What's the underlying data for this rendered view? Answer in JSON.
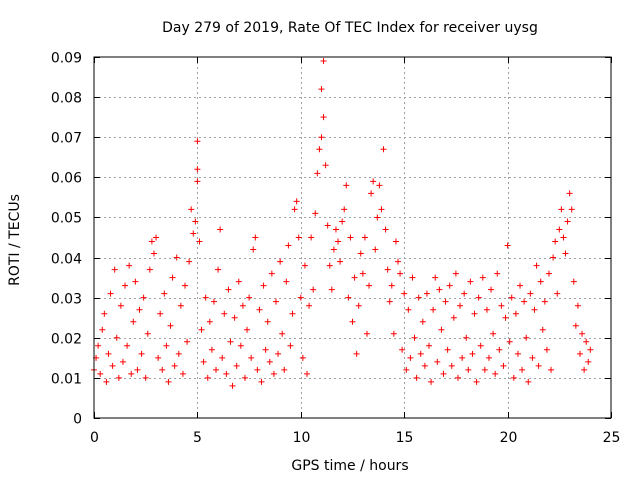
{
  "chart_data": {
    "type": "scatter",
    "title": "Day 279 of 2019, Rate Of TEC Index for receiver uysg",
    "xlabel": "GPS time / hours",
    "ylabel": "ROTI / TECUs",
    "xlim": [
      0,
      25
    ],
    "ylim": [
      0,
      0.09
    ],
    "xticks": [
      0,
      5,
      10,
      15,
      20,
      25
    ],
    "xtick_labels": [
      "0",
      "5",
      "10",
      "15",
      "20",
      "25"
    ],
    "yticks": [
      0,
      0.01,
      0.02,
      0.03,
      0.04,
      0.05,
      0.06,
      0.07,
      0.08,
      0.09
    ],
    "ytick_labels": [
      "0",
      "0.01",
      "0.02",
      "0.03",
      "0.04",
      "0.05",
      "0.06",
      "0.07",
      "0.08",
      "0.09"
    ],
    "grid": true,
    "marker": "+",
    "color": "#ff0000",
    "series": [
      {
        "name": "ROTI",
        "points": [
          [
            0.0,
            0.012
          ],
          [
            0.1,
            0.015
          ],
          [
            0.2,
            0.018
          ],
          [
            0.3,
            0.011
          ],
          [
            0.4,
            0.022
          ],
          [
            0.5,
            0.026
          ],
          [
            0.6,
            0.009
          ],
          [
            0.7,
            0.016
          ],
          [
            0.8,
            0.031
          ],
          [
            0.9,
            0.013
          ],
          [
            1.0,
            0.037
          ],
          [
            1.1,
            0.02
          ],
          [
            1.2,
            0.01
          ],
          [
            1.3,
            0.028
          ],
          [
            1.4,
            0.014
          ],
          [
            1.5,
            0.033
          ],
          [
            1.6,
            0.018
          ],
          [
            1.7,
            0.038
          ],
          [
            1.8,
            0.011
          ],
          [
            1.9,
            0.024
          ],
          [
            2.0,
            0.034
          ],
          [
            2.1,
            0.012
          ],
          [
            2.2,
            0.027
          ],
          [
            2.3,
            0.016
          ],
          [
            2.4,
            0.03
          ],
          [
            2.5,
            0.01
          ],
          [
            2.6,
            0.021
          ],
          [
            2.7,
            0.037
          ],
          [
            2.8,
            0.044
          ],
          [
            2.9,
            0.041
          ],
          [
            3.0,
            0.045
          ],
          [
            3.1,
            0.015
          ],
          [
            3.2,
            0.026
          ],
          [
            3.3,
            0.012
          ],
          [
            3.4,
            0.031
          ],
          [
            3.5,
            0.018
          ],
          [
            3.6,
            0.009
          ],
          [
            3.7,
            0.023
          ],
          [
            3.8,
            0.035
          ],
          [
            3.9,
            0.013
          ],
          [
            4.0,
            0.04
          ],
          [
            4.1,
            0.016
          ],
          [
            4.2,
            0.028
          ],
          [
            4.3,
            0.011
          ],
          [
            4.4,
            0.033
          ],
          [
            4.5,
            0.019
          ],
          [
            4.6,
            0.039
          ],
          [
            4.7,
            0.052
          ],
          [
            4.8,
            0.046
          ],
          [
            4.9,
            0.049
          ],
          [
            5.0,
            0.069
          ],
          [
            5.0,
            0.062
          ],
          [
            5.0,
            0.059
          ],
          [
            5.1,
            0.044
          ],
          [
            5.2,
            0.022
          ],
          [
            5.3,
            0.014
          ],
          [
            5.4,
            0.03
          ],
          [
            5.5,
            0.01
          ],
          [
            5.6,
            0.024
          ],
          [
            5.7,
            0.017
          ],
          [
            5.8,
            0.029
          ],
          [
            5.9,
            0.012
          ],
          [
            6.0,
            0.037
          ],
          [
            6.1,
            0.047
          ],
          [
            6.2,
            0.015
          ],
          [
            6.3,
            0.026
          ],
          [
            6.4,
            0.011
          ],
          [
            6.5,
            0.032
          ],
          [
            6.6,
            0.019
          ],
          [
            6.7,
            0.008
          ],
          [
            6.8,
            0.025
          ],
          [
            6.9,
            0.013
          ],
          [
            7.0,
            0.034
          ],
          [
            7.1,
            0.018
          ],
          [
            7.2,
            0.028
          ],
          [
            7.3,
            0.01
          ],
          [
            7.4,
            0.022
          ],
          [
            7.5,
            0.03
          ],
          [
            7.6,
            0.015
          ],
          [
            7.7,
            0.042
          ],
          [
            7.8,
            0.045
          ],
          [
            7.9,
            0.012
          ],
          [
            8.0,
            0.027
          ],
          [
            8.1,
            0.009
          ],
          [
            8.2,
            0.033
          ],
          [
            8.3,
            0.017
          ],
          [
            8.4,
            0.024
          ],
          [
            8.5,
            0.014
          ],
          [
            8.6,
            0.036
          ],
          [
            8.7,
            0.011
          ],
          [
            8.8,
            0.029
          ],
          [
            8.9,
            0.016
          ],
          [
            9.0,
            0.039
          ],
          [
            9.1,
            0.021
          ],
          [
            9.2,
            0.012
          ],
          [
            9.3,
            0.034
          ],
          [
            9.4,
            0.043
          ],
          [
            9.5,
            0.018
          ],
          [
            9.6,
            0.026
          ],
          [
            9.7,
            0.052
          ],
          [
            9.8,
            0.054
          ],
          [
            9.9,
            0.045
          ],
          [
            10.0,
            0.03
          ],
          [
            10.1,
            0.015
          ],
          [
            10.2,
            0.038
          ],
          [
            10.3,
            0.011
          ],
          [
            10.4,
            0.028
          ],
          [
            10.5,
            0.045
          ],
          [
            10.6,
            0.032
          ],
          [
            10.7,
            0.051
          ],
          [
            10.8,
            0.061
          ],
          [
            10.9,
            0.067
          ],
          [
            11.0,
            0.07
          ],
          [
            11.0,
            0.082
          ],
          [
            11.1,
            0.089
          ],
          [
            11.1,
            0.075
          ],
          [
            11.2,
            0.063
          ],
          [
            11.3,
            0.048
          ],
          [
            11.4,
            0.038
          ],
          [
            11.5,
            0.032
          ],
          [
            11.6,
            0.042
          ],
          [
            11.7,
            0.047
          ],
          [
            11.8,
            0.044
          ],
          [
            11.9,
            0.039
          ],
          [
            12.0,
            0.049
          ],
          [
            12.1,
            0.052
          ],
          [
            12.2,
            0.058
          ],
          [
            12.3,
            0.03
          ],
          [
            12.4,
            0.045
          ],
          [
            12.5,
            0.024
          ],
          [
            12.6,
            0.035
          ],
          [
            12.7,
            0.016
          ],
          [
            12.8,
            0.028
          ],
          [
            12.9,
            0.041
          ],
          [
            13.0,
            0.036
          ],
          [
            13.1,
            0.045
          ],
          [
            13.2,
            0.021
          ],
          [
            13.3,
            0.033
          ],
          [
            13.4,
            0.056
          ],
          [
            13.5,
            0.059
          ],
          [
            13.6,
            0.042
          ],
          [
            13.7,
            0.05
          ],
          [
            13.8,
            0.058
          ],
          [
            13.9,
            0.052
          ],
          [
            14.0,
            0.067
          ],
          [
            14.1,
            0.047
          ],
          [
            14.2,
            0.037
          ],
          [
            14.3,
            0.029
          ],
          [
            14.4,
            0.033
          ],
          [
            14.5,
            0.021
          ],
          [
            14.6,
            0.044
          ],
          [
            14.7,
            0.039
          ],
          [
            14.8,
            0.036
          ],
          [
            14.9,
            0.017
          ],
          [
            15.0,
            0.031
          ],
          [
            15.1,
            0.012
          ],
          [
            15.2,
            0.027
          ],
          [
            15.3,
            0.015
          ],
          [
            15.4,
            0.035
          ],
          [
            15.5,
            0.02
          ],
          [
            15.6,
            0.01
          ],
          [
            15.7,
            0.03
          ],
          [
            15.8,
            0.016
          ],
          [
            15.9,
            0.024
          ],
          [
            16.0,
            0.013
          ],
          [
            16.1,
            0.031
          ],
          [
            16.2,
            0.018
          ],
          [
            16.3,
            0.009
          ],
          [
            16.4,
            0.027
          ],
          [
            16.5,
            0.035
          ],
          [
            16.6,
            0.014
          ],
          [
            16.7,
            0.032
          ],
          [
            16.8,
            0.022
          ],
          [
            16.9,
            0.011
          ],
          [
            17.0,
            0.029
          ],
          [
            17.1,
            0.017
          ],
          [
            17.2,
            0.033
          ],
          [
            17.3,
            0.013
          ],
          [
            17.4,
            0.025
          ],
          [
            17.5,
            0.036
          ],
          [
            17.6,
            0.01
          ],
          [
            17.7,
            0.028
          ],
          [
            17.8,
            0.015
          ],
          [
            17.9,
            0.031
          ],
          [
            18.0,
            0.02
          ],
          [
            18.1,
            0.012
          ],
          [
            18.2,
            0.034
          ],
          [
            18.3,
            0.016
          ],
          [
            18.4,
            0.026
          ],
          [
            18.5,
            0.009
          ],
          [
            18.6,
            0.03
          ],
          [
            18.7,
            0.018
          ],
          [
            18.8,
            0.035
          ],
          [
            18.9,
            0.012
          ],
          [
            19.0,
            0.027
          ],
          [
            19.1,
            0.015
          ],
          [
            19.2,
            0.032
          ],
          [
            19.3,
            0.021
          ],
          [
            19.4,
            0.011
          ],
          [
            19.5,
            0.036
          ],
          [
            19.6,
            0.017
          ],
          [
            19.7,
            0.028
          ],
          [
            19.8,
            0.013
          ],
          [
            19.9,
            0.025
          ],
          [
            20.0,
            0.043
          ],
          [
            20.1,
            0.019
          ],
          [
            20.2,
            0.03
          ],
          [
            20.3,
            0.01
          ],
          [
            20.4,
            0.026
          ],
          [
            20.5,
            0.016
          ],
          [
            20.6,
            0.033
          ],
          [
            20.7,
            0.012
          ],
          [
            20.8,
            0.029
          ],
          [
            20.9,
            0.02
          ],
          [
            21.0,
            0.009
          ],
          [
            21.1,
            0.031
          ],
          [
            21.2,
            0.015
          ],
          [
            21.3,
            0.027
          ],
          [
            21.4,
            0.038
          ],
          [
            21.5,
            0.013
          ],
          [
            21.6,
            0.034
          ],
          [
            21.7,
            0.022
          ],
          [
            21.8,
            0.029
          ],
          [
            21.9,
            0.017
          ],
          [
            22.0,
            0.036
          ],
          [
            22.1,
            0.012
          ],
          [
            22.2,
            0.04
          ],
          [
            22.3,
            0.044
          ],
          [
            22.4,
            0.031
          ],
          [
            22.5,
            0.047
          ],
          [
            22.6,
            0.052
          ],
          [
            22.7,
            0.045
          ],
          [
            22.8,
            0.041
          ],
          [
            22.9,
            0.049
          ],
          [
            23.0,
            0.056
          ],
          [
            23.1,
            0.052
          ],
          [
            23.2,
            0.034
          ],
          [
            23.3,
            0.023
          ],
          [
            23.4,
            0.028
          ],
          [
            23.5,
            0.016
          ],
          [
            23.6,
            0.021
          ],
          [
            23.7,
            0.012
          ],
          [
            23.8,
            0.019
          ],
          [
            23.9,
            0.014
          ],
          [
            24.0,
            0.017
          ]
        ]
      }
    ]
  }
}
